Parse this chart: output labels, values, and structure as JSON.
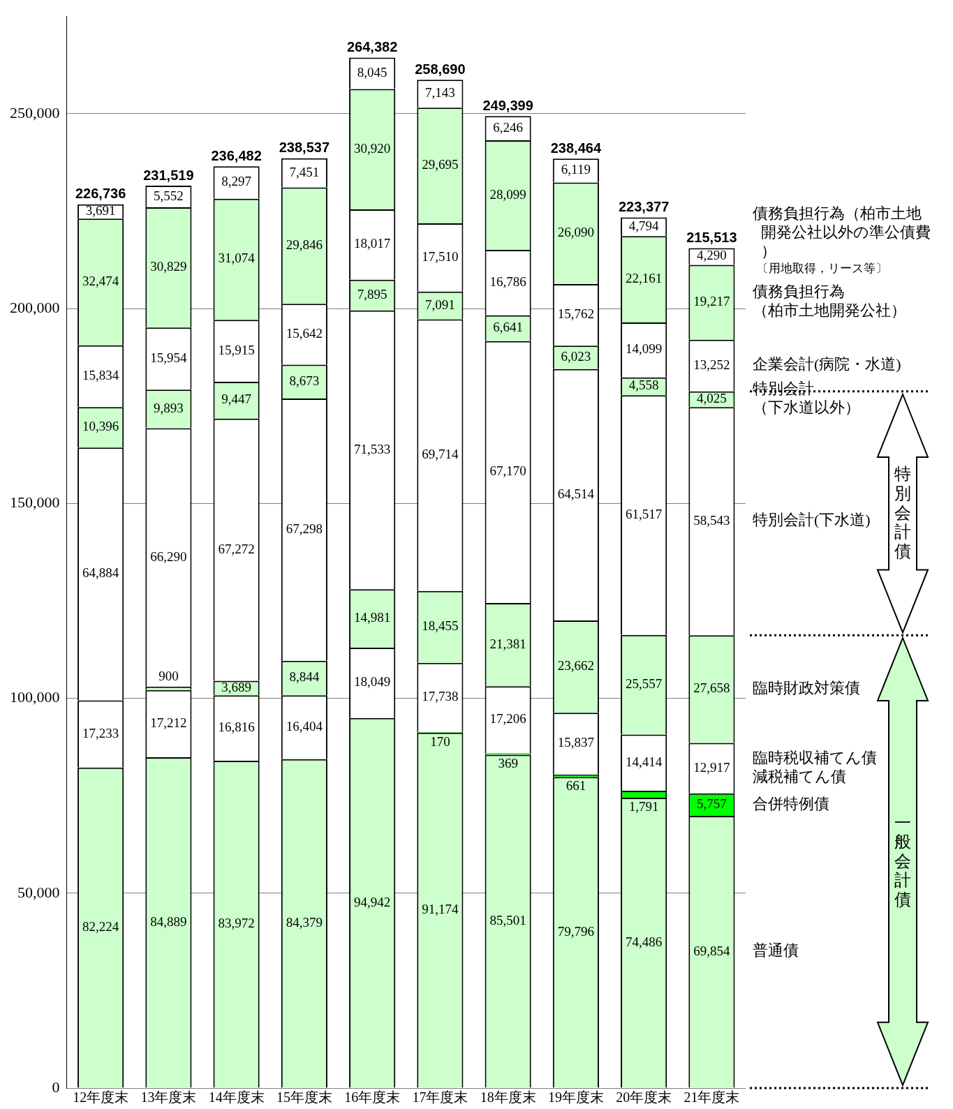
{
  "chart_data": {
    "type": "bar",
    "stacked": true,
    "categories": [
      "12年度末",
      "13年度末",
      "14年度末",
      "15年度末",
      "16年度末",
      "17年度末",
      "18年度末",
      "19年度末",
      "20年度末",
      "21年度末"
    ],
    "series": [
      {
        "name": "普通債",
        "color": "#ccffcc",
        "values": [
          82224,
          84889,
          83972,
          84379,
          94942,
          91174,
          85501,
          79796,
          74486,
          69854
        ],
        "value_labels": [
          "82,224",
          "84,889",
          "83,972",
          "84,379",
          "94,942",
          "91,174",
          "85,501",
          "79,796",
          "74,486",
          "69,854"
        ]
      },
      {
        "name": "合併特例債",
        "color": "#00ff00",
        "values": [
          null,
          null,
          null,
          null,
          null,
          170,
          369,
          661,
          1791,
          5757
        ],
        "value_labels": [
          null,
          null,
          null,
          null,
          null,
          "170",
          "369",
          "661",
          "1,791",
          "5,757"
        ]
      },
      {
        "name": "臨時税収補てん債減税補てん債",
        "color": "#ffffff",
        "values": [
          17233,
          17212,
          16816,
          16404,
          18049,
          17738,
          17206,
          15837,
          14414,
          12917
        ],
        "value_labels": [
          "17,233",
          "17,212",
          "16,816",
          "16,404",
          "18,049",
          "17,738",
          "17,206",
          "15,837",
          "14,414",
          "12,917"
        ]
      },
      {
        "name": "臨時財政対策債",
        "color": "#ccffcc",
        "values": [
          null,
          900,
          3689,
          8844,
          14981,
          18455,
          21381,
          23662,
          25557,
          27658
        ],
        "value_labels": [
          null,
          "900",
          "3,689",
          "8,844",
          "14,981",
          "18,455",
          "21,381",
          "23,662",
          "25,557",
          "27,658"
        ]
      },
      {
        "name": "特別会計(下水道)",
        "color": "#ffffff",
        "values": [
          64884,
          66290,
          67272,
          67298,
          71533,
          69714,
          67170,
          64514,
          61517,
          58543
        ],
        "value_labels": [
          "64,884",
          "66,290",
          "67,272",
          "67,298",
          "71,533",
          "69,714",
          "67,170",
          "64,514",
          "61,517",
          "58,543"
        ]
      },
      {
        "name": "特別会計（下水道以外）",
        "color": "#ccffcc",
        "values": [
          10396,
          9893,
          9447,
          8673,
          7895,
          7091,
          6641,
          6023,
          4558,
          4025
        ],
        "value_labels": [
          "10,396",
          "9,893",
          "9,447",
          "8,673",
          "7,895",
          "7,091",
          "6,641",
          "6,023",
          "4,558",
          "4,025"
        ]
      },
      {
        "name": "企業会計(病院・水道)",
        "color": "#ffffff",
        "values": [
          15834,
          15954,
          15915,
          15642,
          18017,
          17510,
          16786,
          15762,
          14099,
          13252
        ],
        "value_labels": [
          "15,834",
          "15,954",
          "15,915",
          "15,642",
          "18,017",
          "17,510",
          "16,786",
          "15,762",
          "14,099",
          "13,252"
        ]
      },
      {
        "name": "債務負担行為（柏市土地開発公社）",
        "color": "#ccffcc",
        "values": [
          32474,
          30829,
          31074,
          29846,
          30920,
          29695,
          28099,
          26090,
          22161,
          19217
        ],
        "value_labels": [
          "32,474",
          "30,829",
          "31,074",
          "29,846",
          "30,920",
          "29,695",
          "28,099",
          "26,090",
          "22,161",
          "19,217"
        ]
      },
      {
        "name": "債務負担行為（柏市土地開発公社以外の準公債費）",
        "color": "#ffffff",
        "values": [
          3691,
          5552,
          8297,
          7451,
          8045,
          7143,
          6246,
          6119,
          4794,
          4290
        ],
        "value_labels": [
          "3,691",
          "5,552",
          "8,297",
          "7,451",
          "8,045",
          "7,143",
          "6,246",
          "6,119",
          "4,794",
          "4,290"
        ]
      }
    ],
    "totals": [
      "226,736",
      "231,519",
      "236,482",
      "238,537",
      "264,382",
      "258,690",
      "249,399",
      "238,464",
      "223,377",
      "215,513"
    ],
    "ylim": [
      0,
      275000
    ],
    "yticks": [
      0,
      {
        "value": 50000,
        "label": "50,000"
      },
      {
        "value": 100000,
        "label": "100,000"
      },
      {
        "value": 150000,
        "label": "150,000"
      },
      {
        "value": 200000,
        "label": "200,000"
      },
      {
        "value": 250000,
        "label": "250,000"
      }
    ],
    "grid": "y",
    "annotations": [
      "特別会計債",
      "一般会計債",
      "〔用地取得，リース等〕"
    ]
  }
}
